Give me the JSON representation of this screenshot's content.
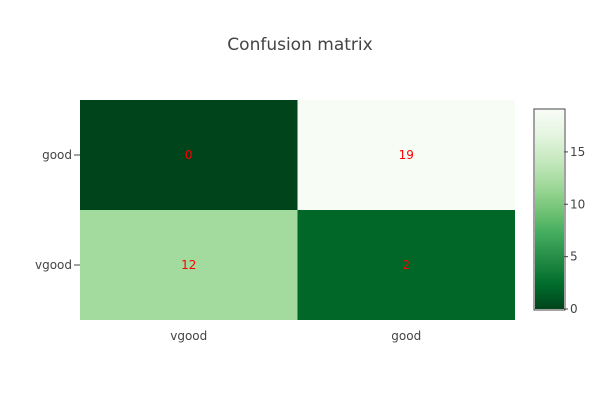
{
  "chart_data": {
    "type": "heatmap",
    "title": "Confusion matrix",
    "x_categories": [
      "vgood",
      "good"
    ],
    "y_categories": [
      "vgood",
      "good"
    ],
    "z": [
      [
        12,
        2
      ],
      [
        0,
        19
      ]
    ],
    "annotation_color": "#ff0000",
    "colorscale_name": "Greens (reversed: low = dark green, high = near white)",
    "colorscale": [
      {
        "v": 0,
        "color": "#00441b"
      },
      {
        "v": 0.125,
        "color": "#006d2c"
      },
      {
        "v": 0.25,
        "color": "#238b45"
      },
      {
        "v": 0.375,
        "color": "#41ab5d"
      },
      {
        "v": 0.5,
        "color": "#74c476"
      },
      {
        "v": 0.625,
        "color": "#a1d99b"
      },
      {
        "v": 0.75,
        "color": "#c7e9c0"
      },
      {
        "v": 0.875,
        "color": "#e5f5e0"
      },
      {
        "v": 1,
        "color": "#f7fcf5"
      }
    ],
    "zmin": 0,
    "zmax": 19,
    "colorbar_ticks": [
      0,
      5,
      10,
      15
    ],
    "grid": false
  }
}
